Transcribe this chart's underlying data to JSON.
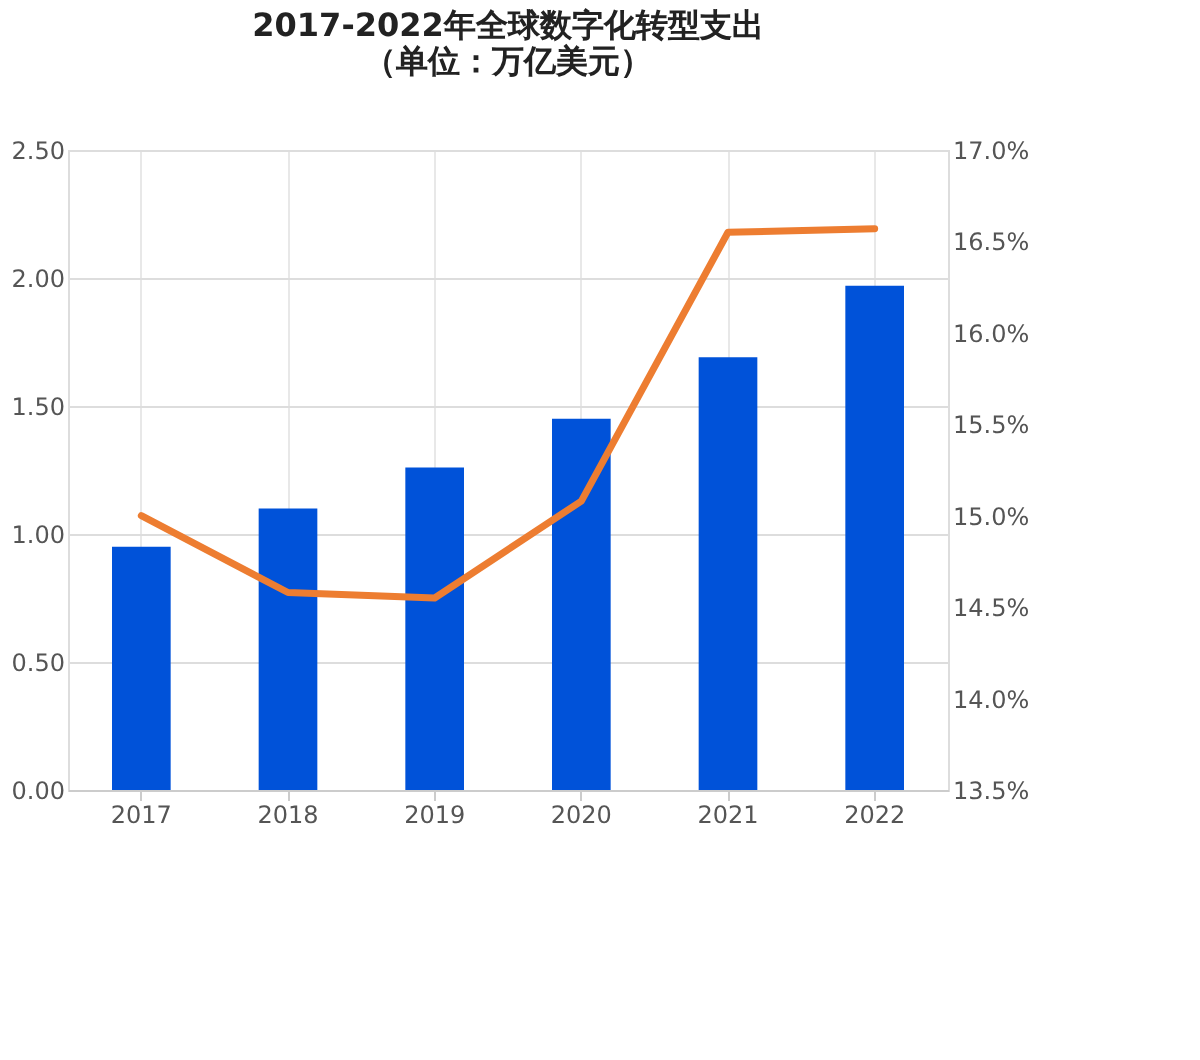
{
  "chart_data": {
    "type": "bar",
    "title": [
      "2017-2022年全球数字化转型支出",
      "（单位：万亿美元）"
    ],
    "categories": [
      "2017",
      "2018",
      "2019",
      "2020",
      "2021",
      "2022"
    ],
    "series": [
      {
        "color": "#0052d9",
        "values": [
          0.95,
          1.1,
          1.26,
          1.45,
          1.69,
          1.97
        ]
      },
      {
        "type": "line",
        "axis": "y2",
        "color": "#ed7d31",
        "values": [
          15.0,
          14.58,
          14.55,
          15.08,
          16.55,
          16.57
        ]
      }
    ],
    "ylim": [
      0,
      2.5
    ],
    "yticks": [
      {
        "value": 0,
        "label": "0.00"
      },
      {
        "value": 0.5,
        "label": "0.50"
      },
      {
        "value": 1,
        "label": "1.00"
      },
      {
        "value": 1.5,
        "label": "1.50"
      },
      {
        "value": 2,
        "label": "2.00"
      },
      {
        "value": 2.5,
        "label": "2.50"
      }
    ],
    "y2lim": [
      13.5,
      17.0
    ],
    "y2ticks": [
      {
        "value": 13.5,
        "label": "13.5%"
      },
      {
        "value": 14.0,
        "label": "14.0%"
      },
      {
        "value": 14.5,
        "label": "14.5%"
      },
      {
        "value": 15.0,
        "label": "15.0%"
      },
      {
        "value": 15.5,
        "label": "15.5%"
      },
      {
        "value": 16.0,
        "label": "16.0%"
      },
      {
        "value": 16.5,
        "label": "16.5%"
      },
      {
        "value": 17.0,
        "label": "17.0%"
      }
    ],
    "grid": true,
    "marker": "none",
    "line_style": "solid"
  }
}
